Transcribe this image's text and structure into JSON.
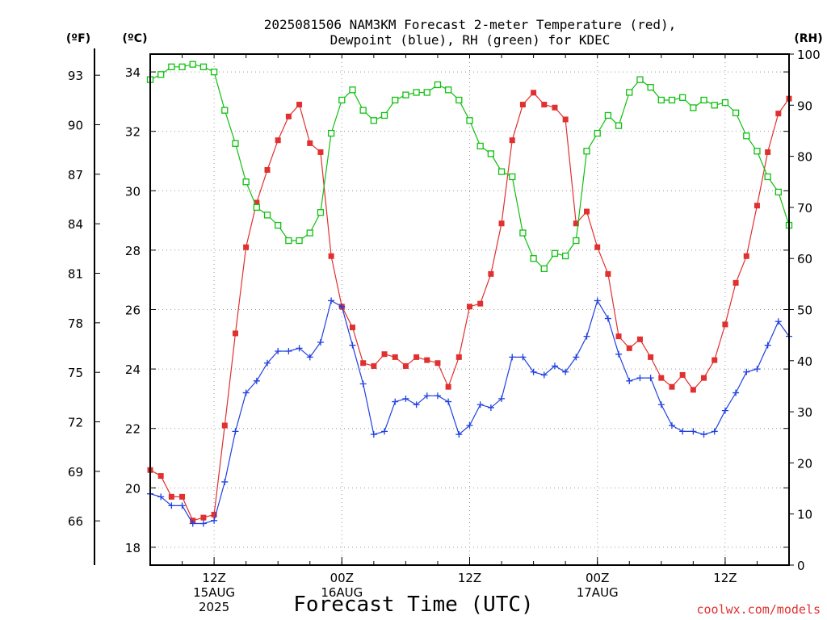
{
  "title": {
    "line1": "2025081506 NAM3KM Forecast 2-meter Temperature (red),",
    "line2": "Dewpoint (blue), RH (green) for KDEC"
  },
  "credit": "coolwx.com/models",
  "chart_data": {
    "type": "line",
    "xlabel": "Forecast Time (UTC)",
    "units": {
      "fahrenheit": "(ºF)",
      "celsius": "(ºC)",
      "rh": "(RH)"
    },
    "y_celsius": {
      "ylim": [
        17.4,
        34.6
      ],
      "ticks": [
        18,
        20,
        22,
        24,
        26,
        28,
        30,
        32,
        34
      ]
    },
    "y_fahrenheit": {
      "ticks": [
        66,
        69,
        72,
        75,
        78,
        81,
        84,
        87,
        90,
        93
      ]
    },
    "y_rh": {
      "ylim": [
        0,
        100
      ],
      "ticks": [
        0,
        10,
        20,
        30,
        40,
        50,
        60,
        70,
        80,
        90,
        100
      ]
    },
    "x_forecast_hours": {
      "range": [
        6,
        66
      ],
      "gridlines": [
        12,
        24,
        36,
        48,
        60
      ]
    },
    "x_tick_labels": [
      {
        "hour": 12,
        "lines": [
          "12Z",
          "15AUG",
          "2025"
        ]
      },
      {
        "hour": 24,
        "lines": [
          "00Z",
          "16AUG"
        ]
      },
      {
        "hour": 36,
        "lines": [
          "12Z"
        ]
      },
      {
        "hour": 48,
        "lines": [
          "00Z",
          "17AUG"
        ]
      },
      {
        "hour": 60,
        "lines": [
          "12Z"
        ]
      }
    ],
    "series": [
      {
        "key": "temperature",
        "color": "#e03030",
        "marker": "filled-square",
        "axis": "celsius",
        "x": [
          6,
          7,
          8,
          9,
          10,
          11,
          12,
          13,
          14,
          15,
          16,
          17,
          18,
          19,
          20,
          21,
          22,
          23,
          24,
          25,
          26,
          27,
          28,
          29,
          30,
          31,
          32,
          33,
          34,
          35,
          36,
          37,
          38,
          39,
          40,
          41,
          42,
          43,
          44,
          45,
          46,
          47,
          48,
          49,
          50,
          51,
          52,
          53,
          54,
          55,
          56,
          57,
          58,
          59,
          60,
          61,
          62,
          63,
          64,
          65,
          66
        ],
        "values": [
          20.6,
          20.4,
          19.7,
          19.7,
          18.9,
          19.0,
          19.1,
          22.1,
          25.2,
          28.1,
          29.6,
          30.7,
          31.7,
          32.5,
          32.9,
          31.6,
          31.3,
          27.8,
          26.1,
          25.4,
          24.2,
          24.1,
          24.5,
          24.4,
          24.1,
          24.4,
          24.3,
          24.2,
          23.4,
          24.4,
          26.1,
          26.2,
          27.2,
          28.9,
          31.7,
          32.9,
          33.3,
          32.9,
          32.8,
          32.4,
          28.9,
          29.3,
          28.1,
          27.2,
          25.1,
          24.7,
          25.0,
          24.4,
          23.7,
          23.4,
          23.8,
          23.3,
          23.7,
          24.3,
          25.5,
          26.9,
          27.8,
          29.5,
          31.3,
          32.6,
          33.1
        ],
        "note": "values in degrees C"
      },
      {
        "key": "dewpoint",
        "color": "#2040e0",
        "marker": "plus",
        "axis": "celsius",
        "x": [
          6,
          7,
          8,
          9,
          10,
          11,
          12,
          13,
          14,
          15,
          16,
          17,
          18,
          19,
          20,
          21,
          22,
          23,
          24,
          25,
          26,
          27,
          28,
          29,
          30,
          31,
          32,
          33,
          34,
          35,
          36,
          37,
          38,
          39,
          40,
          41,
          42,
          43,
          44,
          45,
          46,
          47,
          48,
          49,
          50,
          51,
          52,
          53,
          54,
          55,
          56,
          57,
          58,
          59,
          60,
          61,
          62,
          63,
          64,
          65,
          66
        ],
        "values": [
          19.8,
          19.7,
          19.4,
          19.4,
          18.8,
          18.8,
          18.9,
          20.2,
          21.9,
          23.2,
          23.6,
          24.2,
          24.6,
          24.6,
          24.7,
          24.4,
          24.9,
          26.3,
          26.1,
          24.8,
          23.5,
          21.8,
          21.9,
          22.9,
          23.0,
          22.8,
          23.1,
          23.1,
          22.9,
          21.8,
          22.1,
          22.8,
          22.7,
          23.0,
          24.4,
          24.4,
          23.9,
          23.8,
          24.1,
          23.9,
          24.4,
          25.1,
          26.3,
          25.7,
          24.5,
          23.6,
          23.7,
          23.7,
          22.8,
          22.1,
          21.9,
          21.9,
          21.8,
          21.9,
          22.6,
          23.2,
          23.9,
          24.0,
          24.8,
          25.6,
          25.1
        ],
        "note": "values in degrees C"
      },
      {
        "key": "relative_humidity",
        "color": "#10c010",
        "marker": "open-square",
        "axis": "rh",
        "x": [
          6,
          7,
          8,
          9,
          10,
          11,
          12,
          13,
          14,
          15,
          16,
          17,
          18,
          19,
          20,
          21,
          22,
          23,
          24,
          25,
          26,
          27,
          28,
          29,
          30,
          31,
          32,
          33,
          34,
          35,
          36,
          37,
          38,
          39,
          40,
          41,
          42,
          43,
          44,
          45,
          46,
          47,
          48,
          49,
          50,
          51,
          52,
          53,
          54,
          55,
          56,
          57,
          58,
          59,
          60,
          61,
          62,
          63,
          64,
          65,
          66
        ],
        "values": [
          95,
          96,
          97.5,
          97.5,
          98,
          97.5,
          96.5,
          89,
          82.5,
          75,
          70,
          68.5,
          66.5,
          63.5,
          63.5,
          65,
          69,
          84.5,
          91,
          93,
          89,
          87,
          88,
          91,
          92,
          92.5,
          92.5,
          94,
          93,
          91,
          87,
          82,
          80.5,
          77,
          76,
          65,
          60,
          58,
          61,
          60.5,
          63.5,
          81,
          84.5,
          88,
          86,
          92.5,
          95,
          93.5,
          91,
          91,
          91.5,
          89.5,
          91,
          90,
          90.5,
          88.5,
          84,
          81,
          76,
          73,
          66.5
        ],
        "note": "values in percent"
      }
    ]
  }
}
